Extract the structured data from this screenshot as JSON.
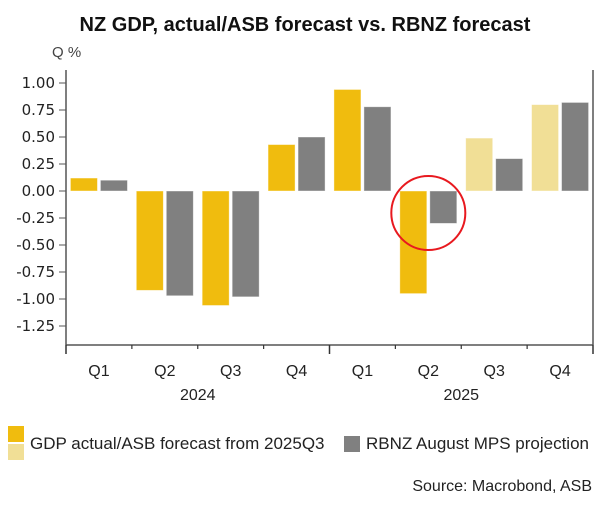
{
  "chart_data": {
    "type": "bar",
    "title": "NZ GDP, actual/ASB forecast vs. RBNZ forecast",
    "ylabel": "Q %",
    "xlabel": "",
    "ylim": [
      -1.25,
      1.0
    ],
    "yticks": [
      "1.00",
      "0.75",
      "0.50",
      "0.25",
      "0.00",
      "-0.25",
      "-0.50",
      "-0.75",
      "-1.00",
      "-1.25"
    ],
    "ytick_values": [
      1.0,
      0.75,
      0.5,
      0.25,
      0.0,
      -0.25,
      -0.5,
      -0.75,
      -1.0,
      -1.25
    ],
    "categories": [
      "Q1",
      "Q2",
      "Q3",
      "Q4",
      "Q1",
      "Q2",
      "Q3",
      "Q4"
    ],
    "year_groups": [
      {
        "label": "2024",
        "start": 0,
        "end": 3
      },
      {
        "label": "2025",
        "start": 4,
        "end": 7
      }
    ],
    "series": [
      {
        "name": "GDP actual/ASB forecast from 2025Q3",
        "values": [
          0.12,
          -0.92,
          -1.06,
          0.43,
          0.94,
          -0.95,
          0.49,
          0.8
        ],
        "forecast_from_index": 6,
        "color": "#f0bc0e",
        "forecast_color": "#f1df96"
      },
      {
        "name": "RBNZ August MPS projection",
        "values": [
          0.1,
          -0.97,
          -0.98,
          0.5,
          0.78,
          -0.3,
          0.3,
          0.82
        ],
        "color": "#808080"
      }
    ],
    "annotation": {
      "type": "circle",
      "category_index": 5,
      "color": "#e8191f"
    },
    "legend_position": "bottom-left",
    "grid": false,
    "source": "Source: Macrobond, ASB"
  },
  "legend": {
    "items": [
      {
        "label": "GDP actual/ASB forecast from 2025Q3"
      },
      {
        "label": "RBNZ August MPS projection"
      }
    ]
  }
}
